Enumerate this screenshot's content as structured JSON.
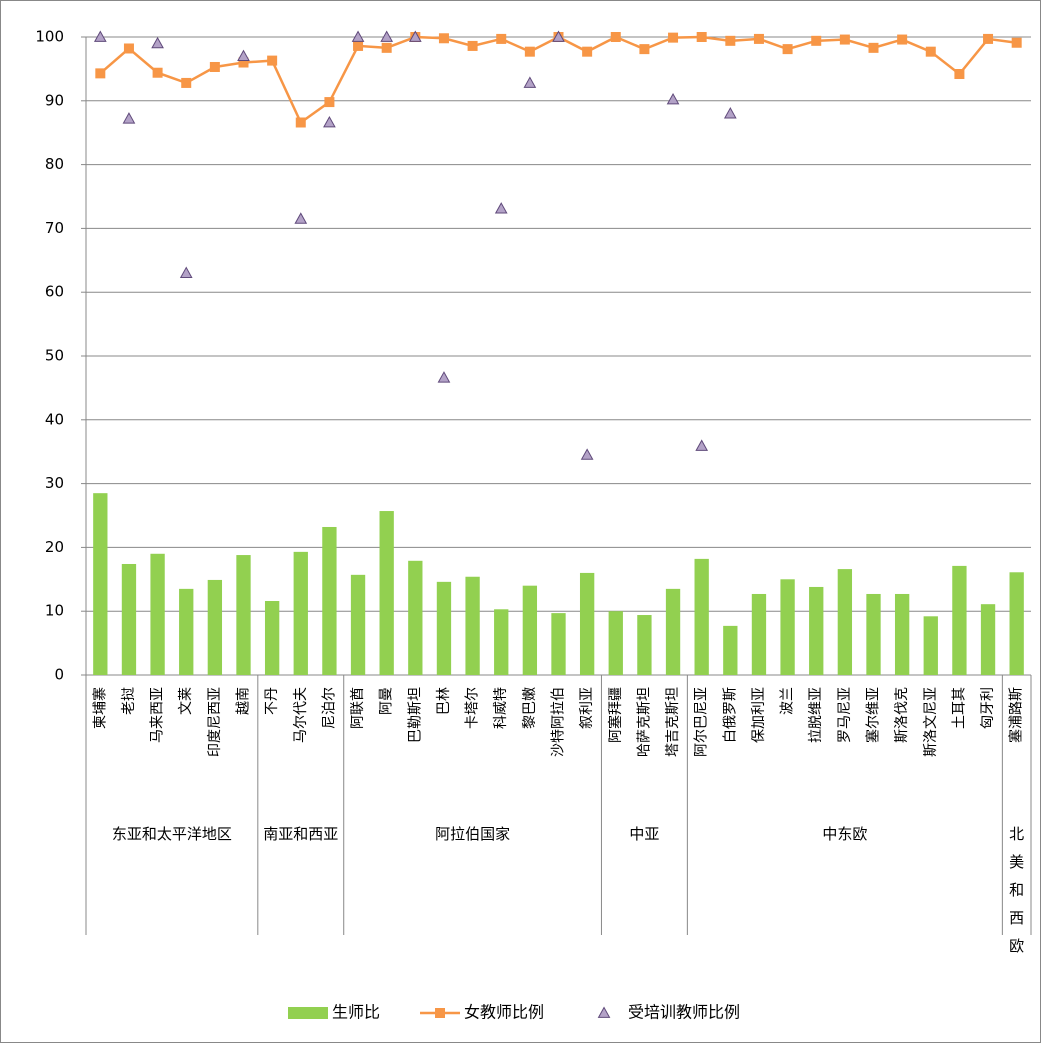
{
  "chart_data": {
    "type": "bar",
    "groups": [
      {
        "name": "东亚和太平洋地区",
        "categories": [
          "柬埔寨",
          "老挝",
          "马来西亚",
          "文莱",
          "印度尼西亚",
          "越南"
        ]
      },
      {
        "name": "南亚和西亚",
        "categories": [
          "不丹",
          "马尔代夫",
          "尼泊尔"
        ]
      },
      {
        "name": "阿拉伯国家",
        "categories": [
          "阿联酋",
          "阿曼",
          "巴勒斯坦",
          "巴林",
          "卡塔尔",
          "科威特",
          "黎巴嫩",
          "沙特阿拉伯",
          "叙利亚"
        ]
      },
      {
        "name": "中亚",
        "categories": [
          "阿塞拜疆",
          "哈萨克斯坦",
          "塔吉克斯坦"
        ]
      },
      {
        "name": "中东欧",
        "categories": [
          "阿尔巴尼亚",
          "白俄罗斯",
          "保加利亚",
          "波兰",
          "拉脱维亚",
          "罗马尼亚",
          "塞尔维亚",
          "斯洛伐克",
          "斯洛文尼亚",
          "土耳其",
          "匈牙利"
        ]
      },
      {
        "name": "北美和西欧",
        "categories": [
          "塞浦路斯"
        ]
      }
    ],
    "series": [
      {
        "name": "生师比",
        "type": "bar",
        "color": "#92d050",
        "values": [
          28.5,
          17.4,
          19,
          13.5,
          14.9,
          18.8,
          11.6,
          19.3,
          23.2,
          15.7,
          25.7,
          17.9,
          14.6,
          15.4,
          10.3,
          14,
          9.7,
          16,
          10,
          9.4,
          13.5,
          18.2,
          7.7,
          12.7,
          15,
          13.8,
          16.6,
          12.7,
          12.7,
          9.2,
          17.1,
          11.1,
          16.1
        ]
      },
      {
        "name": "女教师比例",
        "type": "line",
        "color": "#f79646",
        "values": [
          94.3,
          98.2,
          94.4,
          92.8,
          95.3,
          96,
          96.3,
          86.6,
          89.8,
          98.6,
          98.3,
          100,
          99.8,
          98.6,
          99.7,
          97.7,
          100,
          97.7,
          100,
          98.1,
          99.9,
          100,
          99.4,
          99.7,
          98.1,
          99.4,
          99.6,
          98.3,
          99.6,
          97.7,
          94.2,
          99.7,
          99.1
        ]
      },
      {
        "name": "受培训教师比例",
        "type": "scatter",
        "color": "#b3a2c7",
        "values": [
          100,
          87.2,
          99,
          63,
          null,
          97,
          null,
          71.5,
          86.6,
          100,
          100,
          100,
          46.6,
          null,
          73.1,
          92.8,
          100,
          34.5,
          null,
          null,
          90.2,
          35.9,
          88,
          null,
          null,
          null,
          null,
          null,
          null,
          null,
          null,
          null,
          null
        ]
      }
    ],
    "ylim": [
      0,
      100
    ],
    "yticks": [
      0,
      10,
      20,
      30,
      40,
      50,
      60,
      70,
      80,
      90,
      100
    ],
    "grid": true,
    "legend": "bottom"
  }
}
